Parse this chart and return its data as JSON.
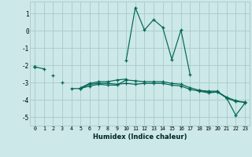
{
  "x": [
    0,
    1,
    2,
    3,
    4,
    5,
    6,
    7,
    8,
    9,
    10,
    11,
    12,
    13,
    14,
    15,
    16,
    17,
    18,
    19,
    20,
    21,
    22,
    23
  ],
  "line_spike": [
    -2.1,
    null,
    null,
    null,
    null,
    null,
    null,
    null,
    null,
    null,
    -1.7,
    1.35,
    0.05,
    0.65,
    0.2,
    -1.65,
    0.05,
    -2.55,
    null,
    null,
    null,
    null,
    null,
    null
  ],
  "line_flat1": [
    -2.1,
    -2.2,
    null,
    null,
    null,
    -3.35,
    -3.1,
    -3.05,
    -3.05,
    -3.1,
    -3.05,
    -3.1,
    -3.05,
    -3.05,
    -3.05,
    -3.15,
    -3.2,
    -3.4,
    -3.5,
    -3.6,
    -3.55,
    -3.85,
    -4.05,
    -4.15
  ],
  "line_flat2": [
    -2.1,
    null,
    -2.6,
    null,
    -3.35,
    -3.35,
    -3.2,
    -3.1,
    -3.15,
    -3.15,
    -2.85,
    -2.9,
    -2.95,
    -2.95,
    -2.95,
    -3.05,
    -3.1,
    -3.3,
    -3.45,
    -3.55,
    -3.55,
    -3.9,
    -4.1,
    -4.15
  ],
  "line_top": [
    -2.1,
    null,
    null,
    -3.0,
    null,
    -3.3,
    -3.05,
    -2.95,
    -2.95,
    -2.85,
    -2.8,
    null,
    null,
    null,
    null,
    null,
    null,
    null,
    null,
    null,
    null,
    null,
    null,
    null
  ],
  "line_end": [
    null,
    null,
    null,
    null,
    null,
    null,
    null,
    null,
    null,
    null,
    null,
    null,
    null,
    null,
    null,
    null,
    null,
    null,
    -3.45,
    -3.5,
    -3.5,
    -3.9,
    -4.9,
    -4.2
  ],
  "background_color": "#cce8e8",
  "grid_color": "#aacaca",
  "line_color": "#006655",
  "xlabel": "Humidex (Indice chaleur)",
  "ylim": [
    -5.5,
    1.7
  ],
  "xlim": [
    -0.5,
    23.5
  ],
  "yticks": [
    1,
    0,
    -1,
    -2,
    -3,
    -4,
    -5
  ],
  "xticks": [
    0,
    1,
    2,
    3,
    4,
    5,
    6,
    7,
    8,
    9,
    10,
    11,
    12,
    13,
    14,
    15,
    16,
    17,
    18,
    19,
    20,
    21,
    22,
    23
  ],
  "figsize": [
    3.2,
    2.0
  ],
  "dpi": 100
}
